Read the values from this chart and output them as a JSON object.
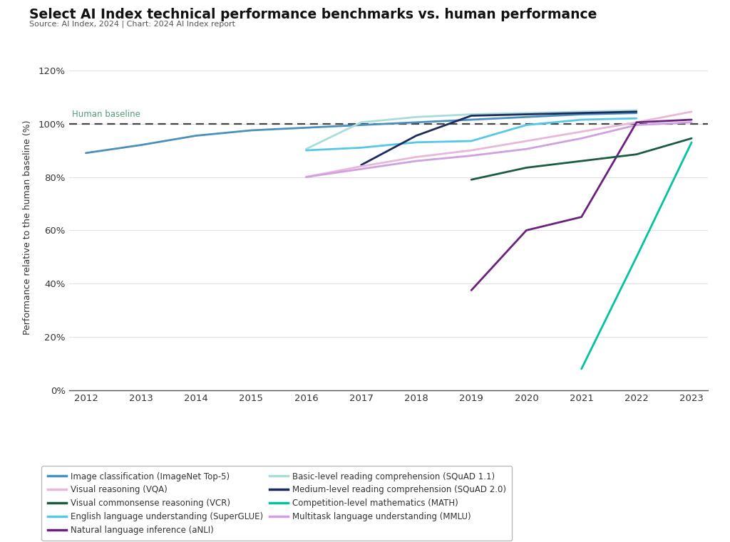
{
  "title": "Select AI Index technical performance benchmarks vs. human performance",
  "source": "Source: AI Index, 2024 | Chart: 2024 AI Index report",
  "ylabel": "Performance relative to the human baseline (%)",
  "human_baseline_label": "Human baseline",
  "xlim": [
    2011.7,
    2023.3
  ],
  "ylim": [
    0,
    122
  ],
  "yticks": [
    0,
    20,
    40,
    60,
    80,
    100,
    120
  ],
  "ytick_labels": [
    "0%",
    "20%",
    "40%",
    "60%",
    "80%",
    "100%",
    "120%"
  ],
  "xticks": [
    2012,
    2013,
    2014,
    2015,
    2016,
    2017,
    2018,
    2019,
    2020,
    2021,
    2022,
    2023
  ],
  "background_color": "#ffffff",
  "series": [
    {
      "name": "Image classification (ImageNet Top-5)",
      "color": "#4A90BF",
      "linewidth": 2.0,
      "data": {
        "x": [
          2012,
          2013,
          2014,
          2015,
          2016,
          2017,
          2018,
          2019,
          2020,
          2021,
          2022
        ],
        "y": [
          89,
          92,
          95.5,
          97.5,
          98.5,
          99.5,
          100.5,
          101.5,
          102.5,
          103.5,
          104.0
        ]
      }
    },
    {
      "name": "Basic-level reading comprehension (SQuAD 1.1)",
      "color": "#A8DDD8",
      "linewidth": 2.0,
      "data": {
        "x": [
          2016,
          2017,
          2018,
          2019,
          2020,
          2021,
          2022
        ],
        "y": [
          90.5,
          100.5,
          102.5,
          103.5,
          104.0,
          104.5,
          105.0
        ]
      }
    },
    {
      "name": "English language understanding (SuperGLUE)",
      "color": "#55C8E8",
      "linewidth": 2.0,
      "data": {
        "x": [
          2016,
          2017,
          2018,
          2019,
          2020,
          2021,
          2022
        ],
        "y": [
          90.0,
          91.0,
          93.0,
          93.5,
          99.5,
          101.5,
          102.0
        ]
      }
    },
    {
      "name": "Medium-level reading comprehension (SQuAD 2.0)",
      "color": "#1C2B5E",
      "linewidth": 2.0,
      "data": {
        "x": [
          2017,
          2018,
          2019,
          2020,
          2021,
          2022
        ],
        "y": [
          84.5,
          95.5,
          103.0,
          103.5,
          104.0,
          104.5
        ]
      }
    },
    {
      "name": "Visual reasoning (VQA)",
      "color": "#E8B8D8",
      "linewidth": 2.0,
      "data": {
        "x": [
          2016,
          2017,
          2018,
          2019,
          2020,
          2021,
          2022,
          2023
        ],
        "y": [
          80.0,
          84.0,
          87.5,
          90.0,
          93.5,
          97.0,
          100.5,
          104.5
        ]
      }
    },
    {
      "name": "Multitask language understanding (MMLU)",
      "color": "#D0A0E0",
      "linewidth": 2.0,
      "data": {
        "x": [
          2016,
          2017,
          2018,
          2019,
          2020,
          2021,
          2022,
          2023
        ],
        "y": [
          80.0,
          83.0,
          86.0,
          88.0,
          90.5,
          94.5,
          99.5,
          100.5
        ]
      }
    },
    {
      "name": "Natural language inference (aNLI)",
      "color": "#6B2080",
      "linewidth": 2.0,
      "data": {
        "x": [
          2019,
          2020,
          2021,
          2022,
          2023
        ],
        "y": [
          37.5,
          60.0,
          65.0,
          100.5,
          101.5
        ]
      }
    },
    {
      "name": "Visual commonsense reasoning (VCR)",
      "color": "#1A5C40",
      "linewidth": 2.0,
      "data": {
        "x": [
          2019,
          2020,
          2021,
          2022,
          2023
        ],
        "y": [
          79.0,
          83.5,
          86.0,
          88.5,
          94.5
        ]
      }
    },
    {
      "name": "Competition-level mathematics (MATH)",
      "color": "#00C4A0",
      "linewidth": 2.0,
      "data": {
        "x": [
          2021,
          2022,
          2023
        ],
        "y": [
          8.0,
          50.0,
          93.0
        ]
      }
    }
  ],
  "legend_order": [
    "Image classification (ImageNet Top-5)",
    "Visual reasoning (VQA)",
    "Visual commonsense reasoning (VCR)",
    "English language understanding (SuperGLUE)",
    "Natural language inference (aNLI)",
    "Basic-level reading comprehension (SQuAD 1.1)",
    "Medium-level reading comprehension (SQuAD 2.0)",
    "Competition-level mathematics (MATH)",
    "Multitask language understanding (MMLU)"
  ]
}
